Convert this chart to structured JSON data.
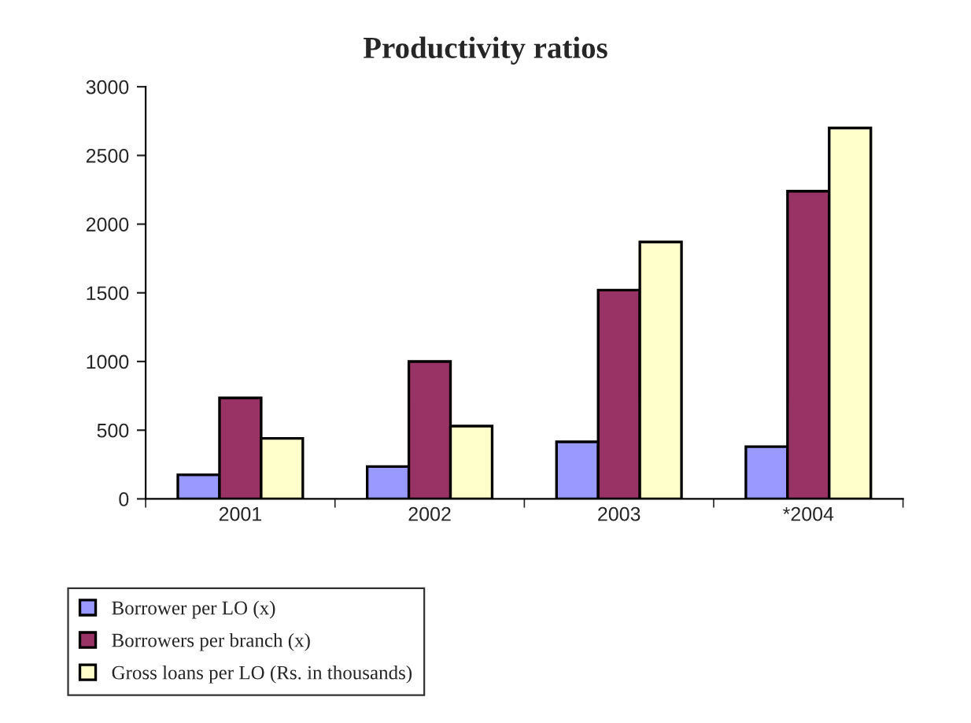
{
  "chart_data": {
    "type": "bar",
    "title": "Productivity ratios",
    "categories": [
      "2001",
      "2002",
      "2003",
      "*2004"
    ],
    "series": [
      {
        "name": "Borrower per LO (x)",
        "color": "#9999ff",
        "values": [
          175,
          235,
          415,
          380
        ]
      },
      {
        "name": "Borrowers per branch (x)",
        "color": "#993366",
        "values": [
          735,
          1000,
          1520,
          2240
        ]
      },
      {
        "name": "Gross loans per LO (Rs. in thousands)",
        "color": "#ffffcc",
        "values": [
          440,
          530,
          1870,
          2700
        ]
      }
    ],
    "ylim": [
      0,
      3000
    ],
    "yticks": [
      0,
      500,
      1000,
      1500,
      2000,
      2500,
      3000
    ],
    "grid": false,
    "legend": "bottom"
  }
}
